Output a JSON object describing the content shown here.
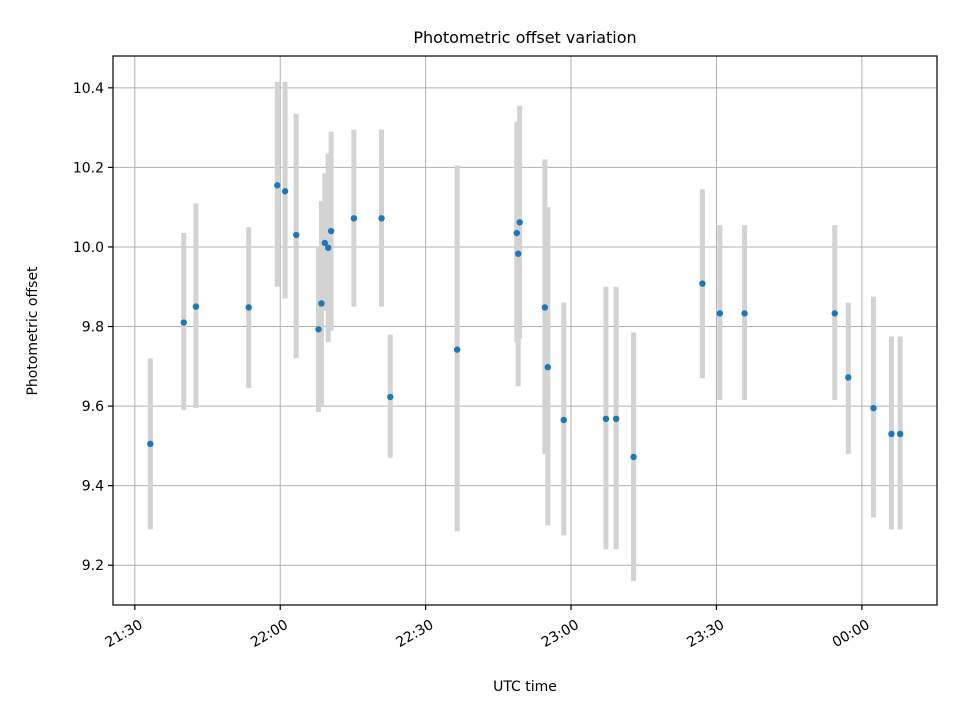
{
  "chart_data": {
    "type": "scatter",
    "title": "Photometric offset variation",
    "xlabel": "UTC time",
    "ylabel": "Photometric offset",
    "x_unit": "minutes since 21:30 UTC",
    "xlim": [
      -4.5,
      165.5
    ],
    "ylim": [
      9.1,
      10.48
    ],
    "xticks": [
      {
        "value": 0,
        "label": "21:30"
      },
      {
        "value": 30,
        "label": "22:00"
      },
      {
        "value": 60,
        "label": "22:30"
      },
      {
        "value": 90,
        "label": "23:00"
      },
      {
        "value": 120,
        "label": "23:30"
      },
      {
        "value": 150,
        "label": "00:00"
      }
    ],
    "yticks": [
      {
        "value": 9.2,
        "label": "9.2"
      },
      {
        "value": 9.4,
        "label": "9.4"
      },
      {
        "value": 9.6,
        "label": "9.6"
      },
      {
        "value": 9.8,
        "label": "9.8"
      },
      {
        "value": 10.0,
        "label": "10.0"
      },
      {
        "value": 10.2,
        "label": "10.2"
      },
      {
        "value": 10.4,
        "label": "10.4"
      }
    ],
    "grid": true,
    "point_color": "#1f77b4",
    "errorbar_color": "#d3d3d3",
    "series": [
      {
        "points": [
          {
            "x": 3.2,
            "y": 9.505,
            "lo": 9.29,
            "hi": 9.72
          },
          {
            "x": 10.1,
            "y": 9.81,
            "lo": 9.59,
            "hi": 10.035
          },
          {
            "x": 12.6,
            "y": 9.85,
            "lo": 9.595,
            "hi": 10.11
          },
          {
            "x": 23.5,
            "y": 9.848,
            "lo": 9.645,
            "hi": 10.05
          },
          {
            "x": 29.4,
            "y": 10.155,
            "lo": 9.9,
            "hi": 10.415
          },
          {
            "x": 31.0,
            "y": 10.14,
            "lo": 9.87,
            "hi": 10.415
          },
          {
            "x": 33.3,
            "y": 10.03,
            "lo": 9.72,
            "hi": 10.335
          },
          {
            "x": 37.9,
            "y": 9.793,
            "lo": 9.585,
            "hi": 10.0
          },
          {
            "x": 38.5,
            "y": 9.858,
            "lo": 9.6,
            "hi": 10.115
          },
          {
            "x": 39.2,
            "y": 10.01,
            "lo": 9.84,
            "hi": 10.185
          },
          {
            "x": 39.9,
            "y": 9.998,
            "lo": 9.76,
            "hi": 10.235
          },
          {
            "x": 40.5,
            "y": 10.04,
            "lo": 9.79,
            "hi": 10.29
          },
          {
            "x": 45.2,
            "y": 10.072,
            "lo": 9.85,
            "hi": 10.295
          },
          {
            "x": 50.9,
            "y": 10.072,
            "lo": 9.85,
            "hi": 10.295
          },
          {
            "x": 52.7,
            "y": 9.623,
            "lo": 9.47,
            "hi": 9.78
          },
          {
            "x": 66.5,
            "y": 9.742,
            "lo": 9.285,
            "hi": 10.205
          },
          {
            "x": 78.8,
            "y": 10.035,
            "lo": 9.76,
            "hi": 10.315
          },
          {
            "x": 79.1,
            "y": 9.983,
            "lo": 9.65,
            "hi": 10.315
          },
          {
            "x": 79.4,
            "y": 10.062,
            "lo": 9.77,
            "hi": 10.355
          },
          {
            "x": 84.6,
            "y": 9.848,
            "lo": 9.48,
            "hi": 10.22
          },
          {
            "x": 85.2,
            "y": 9.698,
            "lo": 9.3,
            "hi": 10.1
          },
          {
            "x": 88.5,
            "y": 9.565,
            "lo": 9.275,
            "hi": 9.86
          },
          {
            "x": 97.2,
            "y": 9.568,
            "lo": 9.24,
            "hi": 9.9
          },
          {
            "x": 99.3,
            "y": 9.568,
            "lo": 9.24,
            "hi": 9.9
          },
          {
            "x": 102.9,
            "y": 9.472,
            "lo": 9.16,
            "hi": 9.785
          },
          {
            "x": 117.1,
            "y": 9.908,
            "lo": 9.67,
            "hi": 10.145
          },
          {
            "x": 120.7,
            "y": 9.833,
            "lo": 9.615,
            "hi": 10.055
          },
          {
            "x": 125.8,
            "y": 9.833,
            "lo": 9.615,
            "hi": 10.055
          },
          {
            "x": 144.4,
            "y": 9.833,
            "lo": 9.615,
            "hi": 10.055
          },
          {
            "x": 147.2,
            "y": 9.672,
            "lo": 9.48,
            "hi": 9.86
          },
          {
            "x": 152.4,
            "y": 9.595,
            "lo": 9.32,
            "hi": 9.875
          },
          {
            "x": 156.1,
            "y": 9.53,
            "lo": 9.29,
            "hi": 9.775
          },
          {
            "x": 157.9,
            "y": 9.53,
            "lo": 9.29,
            "hi": 9.775
          }
        ]
      }
    ]
  }
}
